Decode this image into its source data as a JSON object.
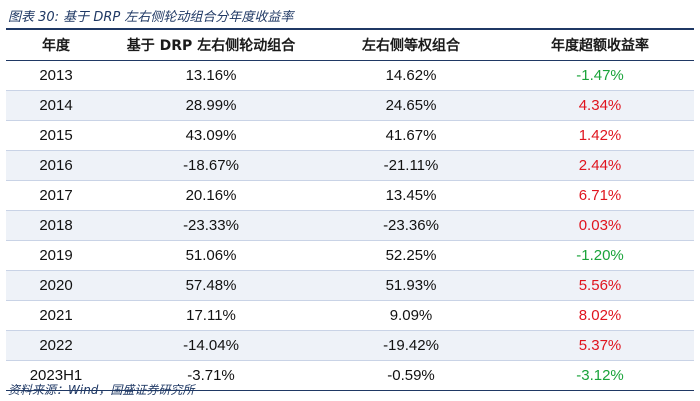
{
  "caption": "图表 30:  基于 DRP 左右侧轮动组合分年度收益率",
  "headers": [
    "年度",
    "基于 DRP 左右侧轮动组合",
    "左右侧等权组合",
    "年度超额收益率"
  ],
  "rows": [
    {
      "year": "2013",
      "drp": "13.16%",
      "equal": "14.62%",
      "excess": "-1.47%",
      "sign": "neg"
    },
    {
      "year": "2014",
      "drp": "28.99%",
      "equal": "24.65%",
      "excess": "4.34%",
      "sign": "pos"
    },
    {
      "year": "2015",
      "drp": "43.09%",
      "equal": "41.67%",
      "excess": "1.42%",
      "sign": "pos"
    },
    {
      "year": "2016",
      "drp": "-18.67%",
      "equal": "-21.11%",
      "excess": "2.44%",
      "sign": "pos"
    },
    {
      "year": "2017",
      "drp": "20.16%",
      "equal": "13.45%",
      "excess": "6.71%",
      "sign": "pos"
    },
    {
      "year": "2018",
      "drp": "-23.33%",
      "equal": "-23.36%",
      "excess": "0.03%",
      "sign": "pos"
    },
    {
      "year": "2019",
      "drp": "51.06%",
      "equal": "52.25%",
      "excess": "-1.20%",
      "sign": "neg"
    },
    {
      "year": "2020",
      "drp": "57.48%",
      "equal": "51.93%",
      "excess": "5.56%",
      "sign": "pos"
    },
    {
      "year": "2021",
      "drp": "17.11%",
      "equal": "9.09%",
      "excess": "8.02%",
      "sign": "pos"
    },
    {
      "year": "2022",
      "drp": "-14.04%",
      "equal": "-19.42%",
      "excess": "5.37%",
      "sign": "pos"
    },
    {
      "year": "2023H1",
      "drp": "-3.71%",
      "equal": "-0.59%",
      "excess": "-3.12%",
      "sign": "neg"
    }
  ],
  "colors": {
    "positive": "#e0141e",
    "negative": "#1aa33a",
    "rule": "#1f3864",
    "stripe": "#eef2f8"
  },
  "source": "资料来源：Wind，国盛证券研究所"
}
